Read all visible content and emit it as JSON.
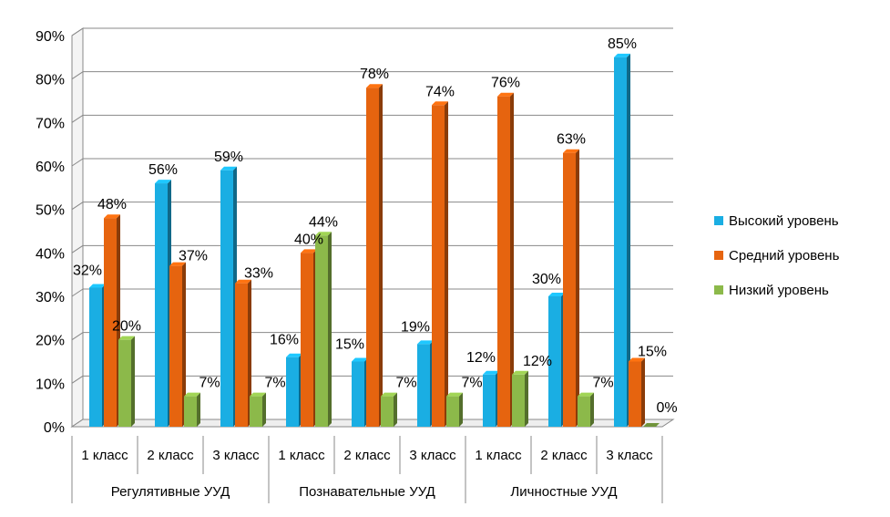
{
  "chart_data": {
    "type": "bar",
    "y_axis": {
      "min": 0,
      "max": 90,
      "step": 10,
      "suffix": "%"
    },
    "groups": [
      {
        "name": "Регулятивные УУД",
        "categories": [
          "1 класс",
          "2 класс",
          "3 класс"
        ]
      },
      {
        "name": "Познавательные УУД",
        "categories": [
          "1 класс",
          "2 класс",
          "3 класс"
        ]
      },
      {
        "name": "Личностные УУД",
        "categories": [
          "1 класс",
          "2 класс",
          "3 класс"
        ]
      }
    ],
    "series": [
      {
        "name": "Высокий уровень",
        "color": "#1aaee3",
        "values": [
          32,
          56,
          59,
          16,
          15,
          19,
          12,
          30,
          85
        ]
      },
      {
        "name": "Средний уровень",
        "color": "#e6640f",
        "values": [
          48,
          37,
          33,
          40,
          78,
          74,
          76,
          63,
          15
        ]
      },
      {
        "name": "Низкий уровень",
        "color": "#8cb94a",
        "values": [
          20,
          7,
          7,
          44,
          7,
          7,
          12,
          7,
          0
        ]
      }
    ]
  }
}
